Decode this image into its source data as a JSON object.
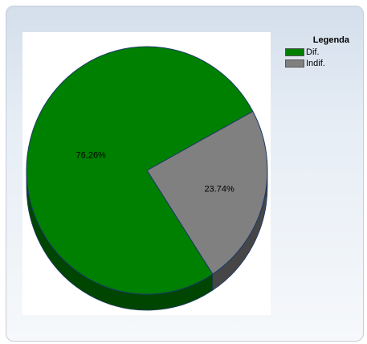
{
  "chart_data": {
    "type": "pie",
    "title": "",
    "legend_title": "Legenda",
    "legend_position": "top-right",
    "slices": [
      {
        "name": "Dif.",
        "value": 76.26,
        "label": "76,26%",
        "color": "#008000"
      },
      {
        "name": "Indif.",
        "value": 23.74,
        "label": "23.74%",
        "color": "#808080"
      }
    ]
  }
}
